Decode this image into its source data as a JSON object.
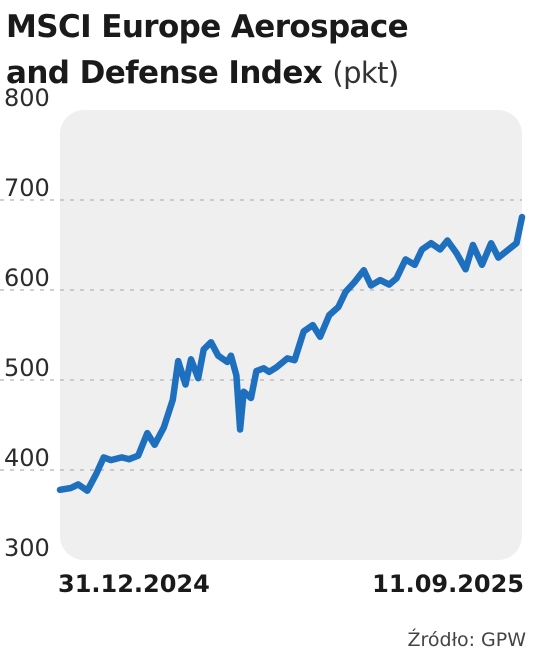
{
  "title": "MSCI Europe Aerospace and Defense Index",
  "title_line1": "MSCI Europe Aerospace",
  "title_line2": "and Defense Index",
  "unit": "(pkt)",
  "source": "Źródło: GPW",
  "colors": {
    "line": "#1f6fbf",
    "panel": "#efefef",
    "grid": "#b3b3b3"
  },
  "chart_data": {
    "type": "line",
    "title": "MSCI Europe Aerospace and Defense Index",
    "xlabel": "",
    "ylabel": "(pkt)",
    "ylim": [
      300,
      800
    ],
    "yticks": [
      800,
      700,
      600,
      500,
      400,
      300
    ],
    "grid": true,
    "x_tick_labels": [
      "31.12.2024",
      "11.09.2025"
    ],
    "x_range": [
      "2024-12-31",
      "2025-09-11"
    ],
    "series": [
      {
        "name": "",
        "x": [
          "2024-12-31",
          "2025-01-06",
          "2025-01-10",
          "2025-01-15",
          "2025-01-20",
          "2025-01-24",
          "2025-01-28",
          "2025-02-03",
          "2025-02-07",
          "2025-02-12",
          "2025-02-17",
          "2025-02-21",
          "2025-02-26",
          "2025-03-03",
          "2025-03-06",
          "2025-03-10",
          "2025-03-13",
          "2025-03-17",
          "2025-03-20",
          "2025-03-24",
          "2025-03-28",
          "2025-04-02",
          "2025-04-04",
          "2025-04-07",
          "2025-04-09",
          "2025-04-11",
          "2025-04-15",
          "2025-04-18",
          "2025-04-22",
          "2025-04-25",
          "2025-04-29",
          "2025-05-05",
          "2025-05-09",
          "2025-05-14",
          "2025-05-19",
          "2025-05-23",
          "2025-05-28",
          "2025-06-02",
          "2025-06-06",
          "2025-06-11",
          "2025-06-16",
          "2025-06-20",
          "2025-06-25",
          "2025-06-30",
          "2025-07-04",
          "2025-07-09",
          "2025-07-14",
          "2025-07-18",
          "2025-07-23",
          "2025-07-28",
          "2025-08-01",
          "2025-08-06",
          "2025-08-11",
          "2025-08-15",
          "2025-08-20",
          "2025-08-25",
          "2025-08-29",
          "2025-09-03",
          "2025-09-08",
          "2025-09-11"
        ],
        "y": [
          378,
          380,
          384,
          377,
          396,
          414,
          411,
          414,
          412,
          416,
          441,
          428,
          447,
          478,
          521,
          495,
          523,
          502,
          534,
          542,
          527,
          520,
          527,
          505,
          445,
          487,
          480,
          510,
          513,
          509,
          514,
          524,
          522,
          554,
          561,
          548,
          572,
          581,
          598,
          609,
          622,
          605,
          611,
          606,
          613,
          634,
          628,
          645,
          652,
          645,
          655,
          641,
          623,
          650,
          628,
          652,
          636,
          644,
          652,
          681
        ]
      }
    ]
  }
}
